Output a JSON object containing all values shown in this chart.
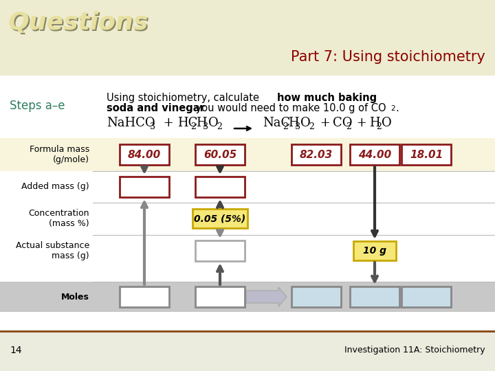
{
  "title": "Part 7: Using stoichiometry",
  "title_color": "#8B0000",
  "header_bg": "#EEECD0",
  "questions_text": "Questions",
  "questions_color": "#E8E0A0",
  "questions_shadow": "#888866",
  "steps_label": "Steps a–e",
  "steps_color": "#2E7D5E",
  "formula_masses": [
    "84.00",
    "60.05",
    "82.03",
    "44.00",
    "18.01"
  ],
  "formula_mass_label": "Formula mass\n(g/mole)",
  "added_mass_label": "Added mass (g)",
  "concentration_label": "Concentration\n(mass %)",
  "actual_substance_label": "Actual substance\nmass (g)",
  "moles_label": "Moles",
  "concentration_value": "0.05 (5%)",
  "actual_substance_value": "10 g",
  "box_border_red": "#8B1A1A",
  "fill_lightyellow_row": "#F8F5DC",
  "fill_lightgray_row": "#C8C8C8",
  "fill_lightblue_moles": "#C8DDE8",
  "fill_yellow_box": "#F5E878",
  "bg_color": "#FAFAF2",
  "footer_text": "Investigation 11A: Stoichiometry",
  "page_number": "14",
  "arrow_dark": "#555555",
  "arrow_gray": "#999999"
}
